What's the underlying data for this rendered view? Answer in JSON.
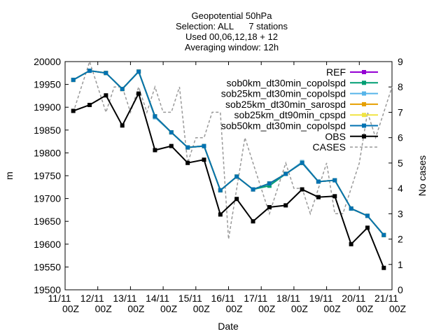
{
  "chart_data": {
    "type": "line",
    "title_lines": [
      "Geopotential 50hPa",
      "Selection: ALL      7 stations",
      "Used 00,06,12,18 + 12",
      "Averaging window: 12h"
    ],
    "xlabel": "Date",
    "ylabel": "m",
    "y2label": "No cases",
    "ylim": [
      19500,
      20000
    ],
    "y2lim": [
      0,
      9
    ],
    "yticks": [
      19500,
      19550,
      19600,
      19650,
      19700,
      19750,
      19800,
      19850,
      19900,
      19950,
      20000
    ],
    "y2ticks": [
      0,
      1,
      2,
      3,
      4,
      5,
      6,
      7,
      8,
      9
    ],
    "xlim": [
      0,
      10
    ],
    "xticks": [
      {
        "x": 0,
        "l1": "11/11",
        "l2": "00Z"
      },
      {
        "x": 1,
        "l1": "12/11",
        "l2": "00Z"
      },
      {
        "x": 2,
        "l1": "13/11",
        "l2": "00Z"
      },
      {
        "x": 3,
        "l1": "14/11",
        "l2": "00Z"
      },
      {
        "x": 4,
        "l1": "15/11",
        "l2": "00Z"
      },
      {
        "x": 5,
        "l1": "16/11",
        "l2": "00Z"
      },
      {
        "x": 6,
        "l1": "17/11",
        "l2": "00Z"
      },
      {
        "x": 7,
        "l1": "18/11",
        "l2": "00Z"
      },
      {
        "x": 8,
        "l1": "19/11",
        "l2": "00Z"
      },
      {
        "x": 9,
        "l1": "20/11",
        "l2": "00Z"
      },
      {
        "x": 10,
        "l1": "21/11",
        "l2": "00Z"
      }
    ],
    "x": [
      0.25,
      0.75,
      1.25,
      1.75,
      2.25,
      2.75,
      3.25,
      3.75,
      4.25,
      4.75,
      5.25,
      5.75,
      6.25,
      6.75,
      7.25,
      7.75,
      8.25,
      8.75,
      9.25,
      9.75
    ],
    "legend_position": "top-right",
    "series": [
      {
        "name": "REF",
        "color": "#9400d3",
        "marker": "square",
        "values": [
          19960,
          19980,
          19975,
          19940,
          19978,
          19880,
          19845,
          19812,
          19815,
          19718,
          19748,
          19720,
          19733,
          19754,
          19778,
          19737,
          19740,
          19678,
          19662,
          19620
        ]
      },
      {
        "name": "sob0km_dt30min_copolspd",
        "color": "#009e73",
        "marker": "square",
        "values": [
          19960,
          19980,
          19975,
          19940,
          19978,
          19880,
          19845,
          19812,
          19815,
          19718,
          19748,
          19720,
          19728,
          19754,
          19778,
          19737,
          19740,
          19678,
          19662,
          19620
        ]
      },
      {
        "name": "sob25km_dt30min_copolspd",
        "color": "#56b4e9",
        "marker": "square",
        "values": [
          19960,
          19980,
          19975,
          19940,
          19978,
          19878,
          19845,
          19812,
          19815,
          19718,
          19748,
          19720,
          19733,
          19754,
          19780,
          19737,
          19740,
          19678,
          19662,
          19620
        ]
      },
      {
        "name": "sob25km_dt30min_sarospd",
        "color": "#e69f00",
        "marker": "square",
        "values": [
          19960,
          19980,
          19975,
          19940,
          19978,
          19880,
          19845,
          19812,
          19815,
          19718,
          19748,
          19720,
          19733,
          19754,
          19778,
          19737,
          19740,
          19678,
          19662,
          19620
        ]
      },
      {
        "name": "sob25km_dt90min_cpspd",
        "color": "#f0e442",
        "marker": "square",
        "values": [
          19960,
          19980,
          19975,
          19940,
          19978,
          19880,
          19845,
          19812,
          19815,
          19718,
          19748,
          19720,
          19733,
          19754,
          19778,
          19737,
          19740,
          19678,
          19662,
          19620
        ]
      },
      {
        "name": "sob50km_dt30min_copolspd",
        "color": "#0072b2",
        "marker": "square",
        "values": [
          19960,
          19980,
          19975,
          19940,
          19978,
          19880,
          19845,
          19812,
          19815,
          19718,
          19748,
          19720,
          19733,
          19754,
          19778,
          19737,
          19740,
          19678,
          19662,
          19620
        ]
      },
      {
        "name": "OBS",
        "color": "#000000",
        "marker": "square",
        "values": [
          19892,
          19905,
          19926,
          19860,
          19930,
          19806,
          19815,
          19778,
          19785,
          19665,
          19699,
          19650,
          19681,
          19685,
          19720,
          19703,
          19705,
          19600,
          19636,
          19548
        ]
      }
    ],
    "cases": {
      "name": "CASES",
      "color": "#999999",
      "x": [
        0.25,
        0.5,
        0.75,
        1.0,
        1.25,
        1.5,
        1.75,
        2.0,
        2.25,
        2.5,
        2.75,
        3.0,
        3.25,
        3.5,
        3.75,
        4.0,
        4.25,
        4.5,
        4.75,
        5.0,
        5.25,
        5.5,
        5.75,
        6.0,
        6.25,
        6.5,
        6.75,
        7.0,
        7.25,
        7.5,
        7.75,
        8.0,
        8.25,
        8.5,
        8.75,
        9.0,
        9.25,
        9.5,
        9.75,
        10.0
      ],
      "values": [
        7,
        8,
        9,
        8,
        7,
        8,
        8,
        7,
        8,
        7,
        8,
        7,
        7,
        8,
        5,
        6,
        6,
        7,
        7,
        2,
        4,
        6,
        5,
        4,
        3,
        4,
        5,
        4,
        4,
        3,
        4,
        5,
        3,
        3,
        4,
        5,
        7,
        6,
        7,
        8
      ]
    }
  }
}
